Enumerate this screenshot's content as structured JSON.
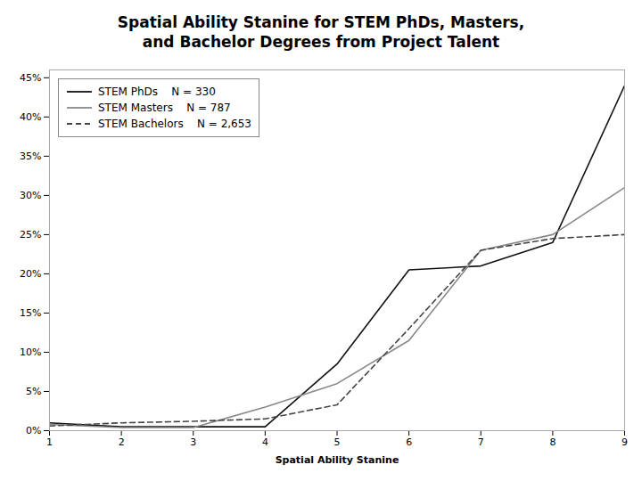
{
  "chart_data": {
    "type": "line",
    "title": "Spatial Ability Stanine for STEM PhDs, Masters,\nand Bachelor Degrees from Project Talent",
    "x_label": "Spatial Ability Stanine",
    "x": [
      1,
      2,
      3,
      4,
      5,
      6,
      7,
      8,
      9
    ],
    "series": [
      {
        "name": "STEM PhDs    N = 330",
        "color": "#111111",
        "line_style": "solid",
        "values": [
          0.01,
          0.005,
          0.005,
          0.005,
          0.085,
          0.205,
          0.21,
          0.24,
          0.44
        ]
      },
      {
        "name": "STEM Masters    N = 787",
        "color": "#888888",
        "line_style": "solid",
        "values": [
          0.008,
          0.004,
          0.004,
          0.03,
          0.06,
          0.115,
          0.23,
          0.25,
          0.31
        ]
      },
      {
        "name": "STEM Bachelors    N = 2,653",
        "color": "#444444",
        "line_style": "dashed",
        "values": [
          0.006,
          0.01,
          0.012,
          0.015,
          0.033,
          0.13,
          0.23,
          0.245,
          0.25
        ]
      }
    ],
    "xlim": [
      1,
      9
    ],
    "xticks": [
      1,
      2,
      3,
      4,
      5,
      6,
      7,
      8,
      9
    ],
    "ylim": [
      0,
      0.46
    ],
    "yticks": [
      {
        "value": 0.0,
        "label": "0%"
      },
      {
        "value": 0.05,
        "label": "5%"
      },
      {
        "value": 0.1,
        "label": "10%"
      },
      {
        "value": 0.15,
        "label": "15%"
      },
      {
        "value": 0.2,
        "label": "20%"
      },
      {
        "value": 0.25,
        "label": "25%"
      },
      {
        "value": 0.3,
        "label": "30%"
      },
      {
        "value": 0.35,
        "label": "35%"
      },
      {
        "value": 0.4,
        "label": "40%"
      },
      {
        "value": 0.45,
        "label": "45%"
      }
    ],
    "grid": false,
    "legend": "upper left"
  }
}
